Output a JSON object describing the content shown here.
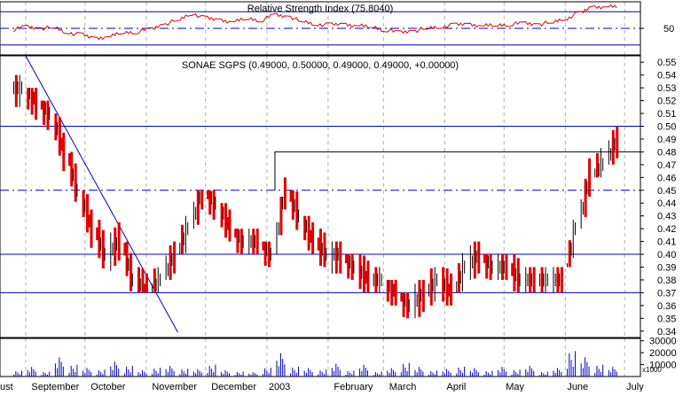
{
  "chart_data": [
    {
      "type": "line",
      "title": "Relative Strength Index (75.8040)",
      "series": [
        {
          "name": "",
          "color": "#e00000",
          "x": [
            "2002-08-26",
            "2002-09-02",
            "2002-09-09",
            "2002-09-16",
            "2002-09-23",
            "2002-09-30",
            "2002-10-07",
            "2002-10-14",
            "2002-10-21",
            "2002-10-28",
            "2002-11-04",
            "2002-11-11",
            "2002-11-18",
            "2002-11-25",
            "2002-12-02",
            "2002-12-09",
            "2002-12-16",
            "2002-12-23",
            "2002-12-30",
            "2003-01-06",
            "2003-01-13",
            "2003-01-20",
            "2003-01-27",
            "2003-02-03",
            "2003-02-10",
            "2003-02-17",
            "2003-02-24",
            "2003-03-03",
            "2003-03-10",
            "2003-03-17",
            "2003-03-24",
            "2003-03-31",
            "2003-04-07",
            "2003-04-14",
            "2003-04-21",
            "2003-04-28",
            "2003-05-05",
            "2003-05-12",
            "2003-05-19",
            "2003-05-26",
            "2003-06-02",
            "2003-06-09",
            "2003-06-16",
            "2003-06-23"
          ],
          "values": [
            48,
            52,
            50,
            51,
            45,
            42,
            38,
            40,
            45,
            46,
            49,
            55,
            60,
            68,
            62,
            60,
            58,
            62,
            60,
            66,
            64,
            58,
            55,
            54,
            55,
            53,
            52,
            48,
            45,
            47,
            50,
            52,
            54,
            55,
            53,
            54,
            55,
            56,
            55,
            57,
            62,
            68,
            76,
            75.8
          ]
        }
      ],
      "yticks": [
        50
      ],
      "reference_lines": [
        70,
        50,
        30
      ],
      "ylim": [
        18,
        82
      ]
    },
    {
      "type": "bar",
      "title": "SONAE SGPS (0.49000, 0.50000, 0.49000, 0.49000, +0.00000)",
      "x_tick_labels": [
        "ust",
        "September",
        "October",
        "November",
        "December",
        "2003",
        "February",
        "March",
        "April",
        "May",
        "June",
        "July"
      ],
      "y_tick_labels": [
        "0.55",
        "0.54",
        "0.53",
        "0.52",
        "0.51",
        "0.50",
        "0.49",
        "0.48",
        "0.47",
        "0.46",
        "0.45",
        "0.44",
        "0.43",
        "0.42",
        "0.41",
        "0.40",
        "0.39",
        "0.38",
        "0.37",
        "0.36",
        "0.35",
        "0.34"
      ],
      "ylim": [
        0.335,
        0.555
      ],
      "horizontal_lines": [
        0.5,
        0.4,
        0.37
      ],
      "dashdot_line": 0.45,
      "resistance_step": {
        "from": "2003-01-01",
        "value": 0.48
      },
      "trendline": {
        "start": [
          "2002-09-01",
          0.555
        ],
        "end": [
          "2002-11-17",
          0.339
        ]
      },
      "x_dates": [
        "2002-08-26",
        "2002-09-02",
        "2002-09-09",
        "2002-09-16",
        "2002-09-23",
        "2002-09-30",
        "2002-10-07",
        "2002-10-14",
        "2002-10-21",
        "2002-10-28",
        "2002-11-04",
        "2002-11-11",
        "2002-11-18",
        "2002-11-25",
        "2002-12-02",
        "2002-12-09",
        "2002-12-16",
        "2002-12-23",
        "2002-12-30",
        "2003-01-06",
        "2003-01-13",
        "2003-01-20",
        "2003-01-27",
        "2003-02-03",
        "2003-02-10",
        "2003-02-17",
        "2003-02-24",
        "2003-03-03",
        "2003-03-10",
        "2003-03-17",
        "2003-03-24",
        "2003-03-31",
        "2003-04-07",
        "2003-04-14",
        "2003-04-21",
        "2003-04-28",
        "2003-05-05",
        "2003-05-12",
        "2003-05-19",
        "2003-05-26",
        "2003-06-02",
        "2003-06-09",
        "2003-06-16",
        "2003-06-23"
      ],
      "close": [
        0.53,
        0.52,
        0.51,
        0.48,
        0.45,
        0.42,
        0.4,
        0.41,
        0.38,
        0.37,
        0.38,
        0.4,
        0.42,
        0.45,
        0.44,
        0.42,
        0.41,
        0.41,
        0.4,
        0.45,
        0.43,
        0.41,
        0.4,
        0.4,
        0.39,
        0.38,
        0.38,
        0.37,
        0.36,
        0.37,
        0.38,
        0.37,
        0.39,
        0.4,
        0.39,
        0.39,
        0.38,
        0.38,
        0.38,
        0.38,
        0.42,
        0.46,
        0.47,
        0.49
      ],
      "high": [
        0.54,
        0.53,
        0.52,
        0.51,
        0.48,
        0.45,
        0.43,
        0.44,
        0.41,
        0.39,
        0.39,
        0.41,
        0.43,
        0.45,
        0.45,
        0.44,
        0.42,
        0.42,
        0.41,
        0.46,
        0.45,
        0.43,
        0.42,
        0.41,
        0.4,
        0.4,
        0.39,
        0.38,
        0.37,
        0.38,
        0.39,
        0.39,
        0.41,
        0.41,
        0.4,
        0.4,
        0.4,
        0.39,
        0.39,
        0.39,
        0.43,
        0.48,
        0.49,
        0.5
      ],
      "low": [
        0.51,
        0.5,
        0.49,
        0.45,
        0.42,
        0.4,
        0.38,
        0.38,
        0.37,
        0.37,
        0.37,
        0.38,
        0.4,
        0.42,
        0.42,
        0.41,
        0.4,
        0.4,
        0.39,
        0.4,
        0.41,
        0.4,
        0.39,
        0.38,
        0.38,
        0.37,
        0.37,
        0.36,
        0.35,
        0.35,
        0.36,
        0.36,
        0.37,
        0.38,
        0.38,
        0.38,
        0.37,
        0.37,
        0.37,
        0.37,
        0.39,
        0.42,
        0.46,
        0.47
      ]
    },
    {
      "type": "bar",
      "ylabel": "x1000",
      "y_tick_labels": [
        "30000",
        "20000",
        "10000"
      ],
      "ylim": [
        0,
        32000
      ],
      "x_dates": [
        "2002-08-26",
        "2002-09-02",
        "2002-09-09",
        "2002-09-16",
        "2002-09-23",
        "2002-09-30",
        "2002-10-07",
        "2002-10-14",
        "2002-10-21",
        "2002-10-28",
        "2002-11-04",
        "2002-11-11",
        "2002-11-18",
        "2002-11-25",
        "2002-12-02",
        "2002-12-09",
        "2002-12-16",
        "2002-12-23",
        "2002-12-30",
        "2003-01-06",
        "2003-01-13",
        "2003-01-20",
        "2003-01-27",
        "2003-02-03",
        "2003-02-10",
        "2003-02-17",
        "2003-02-24",
        "2003-03-03",
        "2003-03-10",
        "2003-03-17",
        "2003-03-24",
        "2003-03-31",
        "2003-04-07",
        "2003-04-14",
        "2003-04-21",
        "2003-04-28",
        "2003-05-05",
        "2003-05-12",
        "2003-05-19",
        "2003-05-26",
        "2003-06-02",
        "2003-06-09",
        "2003-06-16",
        "2003-06-23"
      ],
      "values": [
        6000,
        9000,
        5000,
        18000,
        12000,
        8000,
        7000,
        14000,
        11000,
        6000,
        9000,
        10000,
        8000,
        7000,
        12000,
        6000,
        5000,
        4000,
        9000,
        22000,
        10000,
        8000,
        7000,
        12000,
        6000,
        11000,
        5000,
        8000,
        14000,
        9000,
        6000,
        7000,
        10000,
        8000,
        6000,
        9000,
        7000,
        10000,
        5000,
        8000,
        26000,
        18000,
        12000,
        9000
      ]
    }
  ]
}
